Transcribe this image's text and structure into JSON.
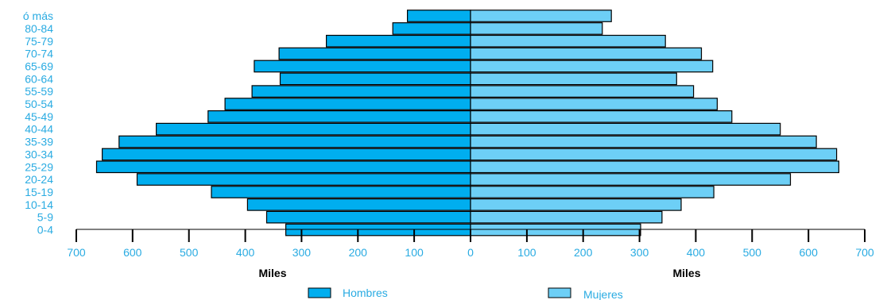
{
  "chart_data": {
    "type": "bar",
    "orientation": "horizontal",
    "categories": [
      "0-4",
      "5-9",
      "10-14",
      "15-19",
      "20-24",
      "25-29",
      "30-34",
      "35-39",
      "40-44",
      "45-49",
      "50-54",
      "55-59",
      "60-64",
      "65-69",
      "70-74",
      "75-79",
      "80-84",
      "ó más"
    ],
    "series": [
      {
        "name": "Hombres",
        "color": "#00aeef",
        "values": [
          328,
          362,
          396,
          460,
          592,
          664,
          654,
          624,
          558,
          466,
          436,
          388,
          338,
          384,
          340,
          256,
          138,
          112
        ]
      },
      {
        "name": "Mujeres",
        "color": "#6dcff6",
        "values": [
          302,
          340,
          374,
          432,
          568,
          654,
          650,
          614,
          550,
          464,
          438,
          396,
          366,
          430,
          410,
          346,
          234,
          250
        ]
      }
    ],
    "xlabel_left": "Miles",
    "xlabel_right": "Miles",
    "xticks": [
      700,
      600,
      500,
      400,
      300,
      200,
      100,
      0,
      100,
      200,
      300,
      400,
      500,
      600,
      700
    ],
    "xlim": [
      0,
      700
    ],
    "legend_position": "bottom",
    "text_color": "#29abe2",
    "grid": false
  }
}
